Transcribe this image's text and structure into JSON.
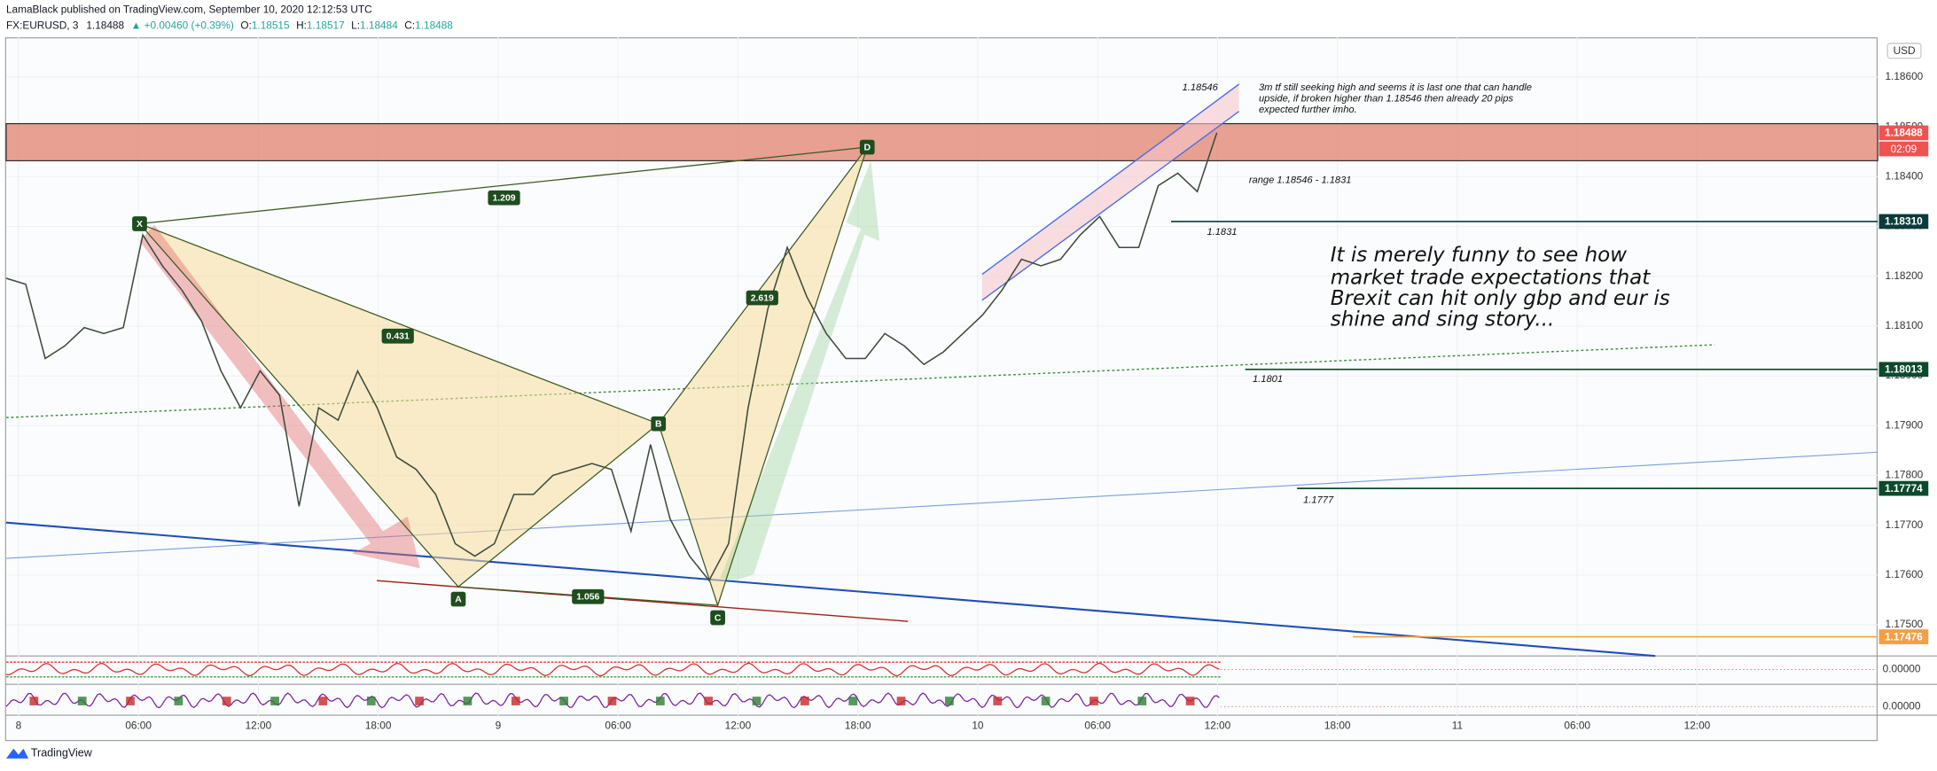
{
  "header": {
    "publisher": "LamaBlack published on TradingView.com, September 10, 2020 12:12:53 UTC",
    "symbol": "FX:EURUSD, 3",
    "last": "1.18488",
    "change": "▲ +0.00460 (+0.39%)",
    "ohlc": [
      {
        "label": "O:",
        "value": "1.18515"
      },
      {
        "label": "H:",
        "value": "1.18517"
      },
      {
        "label": "L:",
        "value": "1.18484"
      },
      {
        "label": "C:",
        "value": "1.18488"
      }
    ]
  },
  "chart_data": {
    "type": "line",
    "currency": "USD",
    "color": "#3c4a3c",
    "values": [
      1.18196,
      1.18184,
      1.18035,
      1.1806,
      1.18097,
      1.18085,
      1.18097,
      1.18283,
      1.18221,
      1.18172,
      1.1811,
      1.1801,
      1.17936,
      1.1801,
      1.17961,
      1.17738,
      1.17936,
      1.17911,
      1.1801,
      1.17936,
      1.17837,
      1.17812,
      1.17762,
      1.17663,
      1.17638,
      1.17663,
      1.17762,
      1.17762,
      1.178,
      1.17812,
      1.17824,
      1.17812,
      1.17688,
      1.17862,
      1.17713,
      1.17638,
      1.17589,
      1.17663,
      1.17936,
      1.18134,
      1.18258,
      1.18159,
      1.18085,
      1.18035,
      1.18035,
      1.18085,
      1.1806,
      1.18023,
      1.18048,
      1.18085,
      1.18122,
      1.18172,
      1.18234,
      1.18221,
      1.18234,
      1.18283,
      1.1832,
      1.18258,
      1.18258,
      1.18382,
      1.18407,
      1.1837,
      1.18488
    ],
    "ylim": [
      1.1744,
      1.1868
    ],
    "yticks": [
      {
        "value": 1.186,
        "label": "1.18600"
      },
      {
        "value": 1.185,
        "label": "1.18500"
      },
      {
        "value": 1.184,
        "label": "1.18400"
      },
      {
        "value": 1.183,
        "label": "1.18300"
      },
      {
        "value": 1.182,
        "label": "1.18200"
      },
      {
        "value": 1.181,
        "label": "1.18100"
      },
      {
        "value": 1.18,
        "label": "1.18000"
      },
      {
        "value": 1.179,
        "label": "1.17900"
      },
      {
        "value": 1.178,
        "label": "1.17800"
      },
      {
        "value": 1.177,
        "label": "1.17700"
      },
      {
        "value": 1.176,
        "label": "1.17600"
      },
      {
        "value": 1.175,
        "label": "1.17500"
      }
    ],
    "xticks": [
      "8",
      "06:00",
      "12:00",
      "18:00",
      "9",
      "06:00",
      "12:00",
      "18:00",
      "10",
      "06:00",
      "12:00",
      "18:00",
      "11",
      "06:00",
      "12:00"
    ],
    "price_labels": [
      {
        "value": 1.18488,
        "label": "1.18488",
        "color": "#ef5350"
      },
      {
        "value": 1.1831,
        "label": "1.18310",
        "color": "#0c3b3b"
      },
      {
        "value": 1.18013,
        "label": "1.18013",
        "color": "#0c4a2c"
      },
      {
        "value": 1.17774,
        "label": "1.17774",
        "color": "#0c4a2c"
      },
      {
        "value": 1.17476,
        "label": "1.17476",
        "color": "#f0a045"
      }
    ],
    "countdown": "02:09",
    "indicator_ticks": [
      {
        "value": 0,
        "label": "0.00000"
      },
      {
        "value": 0,
        "label": "0.00000"
      }
    ]
  },
  "pattern": {
    "points": [
      "X",
      "A",
      "B",
      "C",
      "D"
    ],
    "ratios": [
      "1.209",
      "0.431",
      "1.056",
      "2.619"
    ]
  },
  "annotations": {
    "high": "1.18546",
    "note": [
      "3m tf still seeking high and seems it is last one that can handle",
      "upside, if broken higher than 1.18546 then already 20 pips",
      "expected further imho."
    ],
    "range": "range 1.18546 - 1.1831",
    "level_1831": "1.1831",
    "level_1801": "1.1801",
    "level_1777": "1.1777",
    "comment": [
      "It is merely funny to see how",
      "market trade expectations that",
      "Brexit can hit only gbp and eur is",
      "shine and sing story..."
    ]
  },
  "branding": "TradingView"
}
